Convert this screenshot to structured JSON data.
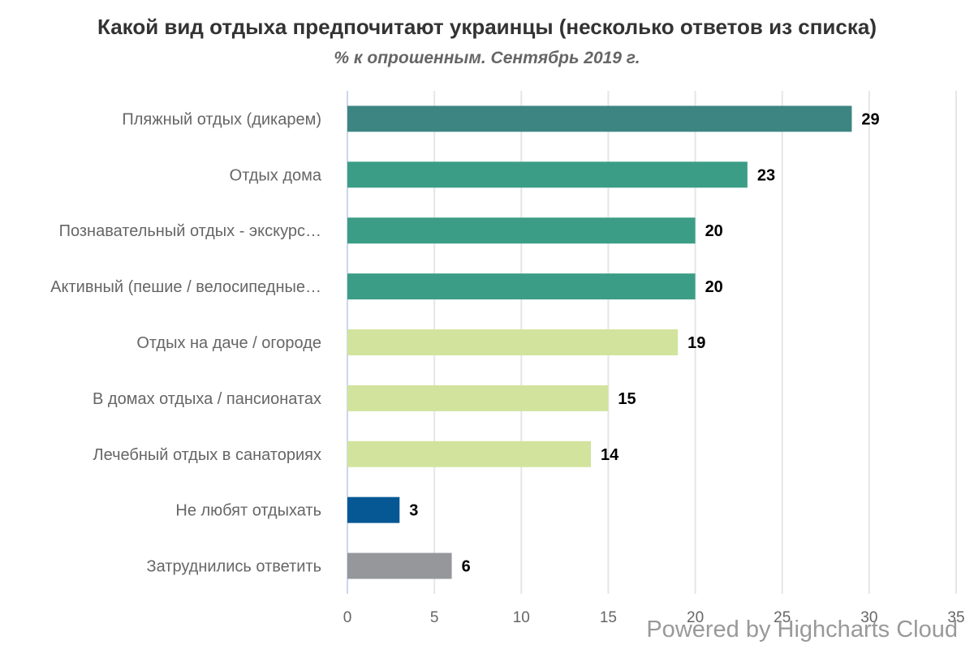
{
  "chart": {
    "title": "Какой вид отдыха предпочитают украинцы (несколько ответов из списка)",
    "subtitle": "% к опрошенным. Сентябрь 2019 г.",
    "credits": "Powered by Highcharts Cloud"
  },
  "chart_data": {
    "type": "bar",
    "orientation": "horizontal",
    "categories": [
      "Пляжный отдых (дикарем)",
      "Отдых дома",
      "Познавательный отдых - экскурс…",
      "Активный (пешие / велосипедные…",
      "Отдых на даче / огороде",
      "В домах отдыха / пансионатах",
      "Лечебный отдых в санаториях",
      "Не любят отдыхать",
      "Затруднились ответить"
    ],
    "values": [
      29,
      23,
      20,
      20,
      19,
      15,
      14,
      3,
      6
    ],
    "colors": [
      "#3c8582",
      "#3c9d86",
      "#3c9d86",
      "#3c9d86",
      "#d2e39d",
      "#d2e39d",
      "#d2e39d",
      "#055893",
      "#96979b"
    ],
    "xlim": [
      0,
      35
    ],
    "x_ticks": [
      0,
      5,
      10,
      15,
      20,
      25,
      30,
      35
    ],
    "grid": true,
    "data_labels": true,
    "title": "Какой вид отдыха предпочитают украинцы (несколько ответов из списка)",
    "subtitle": "% к опрошенным. Сентябрь 2019 г.",
    "xlabel": "",
    "ylabel": ""
  }
}
